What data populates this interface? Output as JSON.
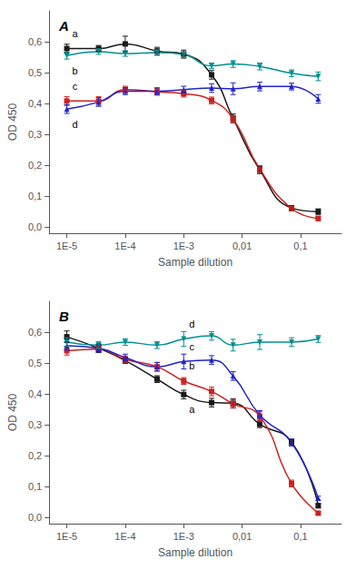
{
  "chart_data": [
    {
      "type": "line",
      "title": "A",
      "xlabel": "Sample dilution",
      "ylabel": "OD 450",
      "log": "x",
      "grid": false,
      "xlim": [
        5e-06,
        0.5
      ],
      "xticks": [
        {
          "value": 1e-05,
          "label": "1E-5"
        },
        {
          "value": 0.0001,
          "label": "1E-4"
        },
        {
          "value": 0.001,
          "label": "1E-3"
        },
        {
          "value": 0.01,
          "label": "0,01"
        },
        {
          "value": 0.1,
          "label": "0,1"
        }
      ],
      "ylim": [
        -0.02,
        0.7
      ],
      "yticks": [
        {
          "value": 0.0,
          "label": "0,0"
        },
        {
          "value": 0.1,
          "label": "0,1"
        },
        {
          "value": 0.2,
          "label": "0,2"
        },
        {
          "value": 0.3,
          "label": "0,3"
        },
        {
          "value": 0.4,
          "label": "0,4"
        },
        {
          "value": 0.5,
          "label": "0,5"
        },
        {
          "value": 0.6,
          "label": "0,6"
        }
      ],
      "series": [
        {
          "name": "a",
          "color": "#1a1a1a",
          "marker": "square",
          "x": [
            1e-05,
            3.5e-05,
            0.0001,
            0.00035,
            0.001,
            0.003,
            0.007,
            0.02,
            0.07,
            0.2
          ],
          "values": [
            0.578,
            0.578,
            0.593,
            0.57,
            0.56,
            0.493,
            0.352,
            0.185,
            0.062,
            0.05
          ],
          "yerr": [
            0.014,
            0.01,
            0.025,
            0.012,
            0.013,
            0.014,
            0.014,
            0.012,
            0.007,
            0.009
          ]
        },
        {
          "name": "b",
          "color": "#009090",
          "marker": "triangle-down",
          "x": [
            1e-05,
            3.5e-05,
            0.0001,
            0.00035,
            0.001,
            0.003,
            0.007,
            0.02,
            0.07,
            0.2
          ],
          "values": [
            0.555,
            0.568,
            0.562,
            0.565,
            0.558,
            0.522,
            0.528,
            0.52,
            0.498,
            0.488
          ],
          "yerr": [
            0.011,
            0.009,
            0.009,
            0.009,
            0.009,
            0.009,
            0.011,
            0.011,
            0.011,
            0.014
          ]
        },
        {
          "name": "c",
          "color": "#cc2222",
          "marker": "square",
          "x": [
            1e-05,
            3.5e-05,
            0.0001,
            0.00035,
            0.001,
            0.003,
            0.007,
            0.02,
            0.07,
            0.2
          ],
          "values": [
            0.408,
            0.408,
            0.445,
            0.438,
            0.432,
            0.41,
            0.35,
            0.188,
            0.06,
            0.028
          ],
          "yerr": [
            0.014,
            0.014,
            0.011,
            0.011,
            0.011,
            0.011,
            0.011,
            0.011,
            0.007,
            0.007
          ]
        },
        {
          "name": "d",
          "color": "#2222cc",
          "marker": "triangle-up",
          "x": [
            1e-05,
            3.5e-05,
            0.0001,
            0.00035,
            0.001,
            0.003,
            0.007,
            0.02,
            0.07,
            0.2
          ],
          "values": [
            0.382,
            0.405,
            0.44,
            0.44,
            0.445,
            0.45,
            0.448,
            0.455,
            0.455,
            0.415
          ],
          "yerr": [
            0.014,
            0.014,
            0.011,
            0.011,
            0.011,
            0.014,
            0.019,
            0.014,
            0.011,
            0.014
          ]
        }
      ]
    },
    {
      "type": "line",
      "title": "B",
      "xlabel": "Sample dilution",
      "ylabel": "OD 450",
      "log": "x",
      "grid": false,
      "xlim": [
        5e-06,
        0.5
      ],
      "xticks": [
        {
          "value": 1e-05,
          "label": "1E-5"
        },
        {
          "value": 0.0001,
          "label": "1E-4"
        },
        {
          "value": 0.001,
          "label": "1E-3"
        },
        {
          "value": 0.01,
          "label": "0,01"
        },
        {
          "value": 0.1,
          "label": "0,1"
        }
      ],
      "ylim": [
        -0.02,
        0.7
      ],
      "yticks": [
        {
          "value": 0.0,
          "label": "0,0"
        },
        {
          "value": 0.1,
          "label": "0,1"
        },
        {
          "value": 0.2,
          "label": "0,2"
        },
        {
          "value": 0.3,
          "label": "0,3"
        },
        {
          "value": 0.4,
          "label": "0,4"
        },
        {
          "value": 0.5,
          "label": "0,5"
        },
        {
          "value": 0.6,
          "label": "0,6"
        }
      ],
      "series": [
        {
          "name": "a",
          "color": "#1a1a1a",
          "marker": "square",
          "x": [
            1e-05,
            3.5e-05,
            0.0001,
            0.00035,
            0.001,
            0.003,
            0.007,
            0.02,
            0.07,
            0.2
          ],
          "values": [
            0.585,
            0.548,
            0.508,
            0.448,
            0.398,
            0.372,
            0.37,
            0.302,
            0.245,
            0.038
          ],
          "yerr": [
            0.019,
            0.011,
            0.009,
            0.011,
            0.014,
            0.014,
            0.014,
            0.011,
            0.009,
            0.007
          ]
        },
        {
          "name": "b",
          "color": "#cc2222",
          "marker": "square",
          "x": [
            1e-05,
            3.5e-05,
            0.0001,
            0.00035,
            0.001,
            0.003,
            0.007,
            0.02,
            0.07,
            0.2
          ],
          "values": [
            0.54,
            0.545,
            0.512,
            0.488,
            0.442,
            0.408,
            0.368,
            0.328,
            0.11,
            0.014
          ],
          "yerr": [
            0.014,
            0.011,
            0.011,
            0.014,
            0.011,
            0.014,
            0.014,
            0.014,
            0.011,
            0.005
          ]
        },
        {
          "name": "c",
          "color": "#2222cc",
          "marker": "triangle-up",
          "x": [
            1e-05,
            3.5e-05,
            0.0001,
            0.00035,
            0.001,
            0.003,
            0.007,
            0.02,
            0.07,
            0.2
          ],
          "values": [
            0.556,
            0.548,
            0.518,
            0.488,
            0.505,
            0.51,
            0.458,
            0.332,
            0.242,
            0.062
          ],
          "yerr": [
            0.014,
            0.014,
            0.011,
            0.014,
            0.024,
            0.014,
            0.014,
            0.014,
            0.011,
            0.007
          ]
        },
        {
          "name": "d",
          "color": "#009090",
          "marker": "triangle-down",
          "x": [
            1e-05,
            3.5e-05,
            0.0001,
            0.00035,
            0.001,
            0.003,
            0.007,
            0.02,
            0.07,
            0.2
          ],
          "values": [
            0.568,
            0.558,
            0.568,
            0.558,
            0.578,
            0.588,
            0.558,
            0.568,
            0.568,
            0.578
          ],
          "yerr": [
            0.014,
            0.011,
            0.011,
            0.011,
            0.024,
            0.014,
            0.019,
            0.024,
            0.014,
            0.011
          ]
        }
      ]
    }
  ]
}
